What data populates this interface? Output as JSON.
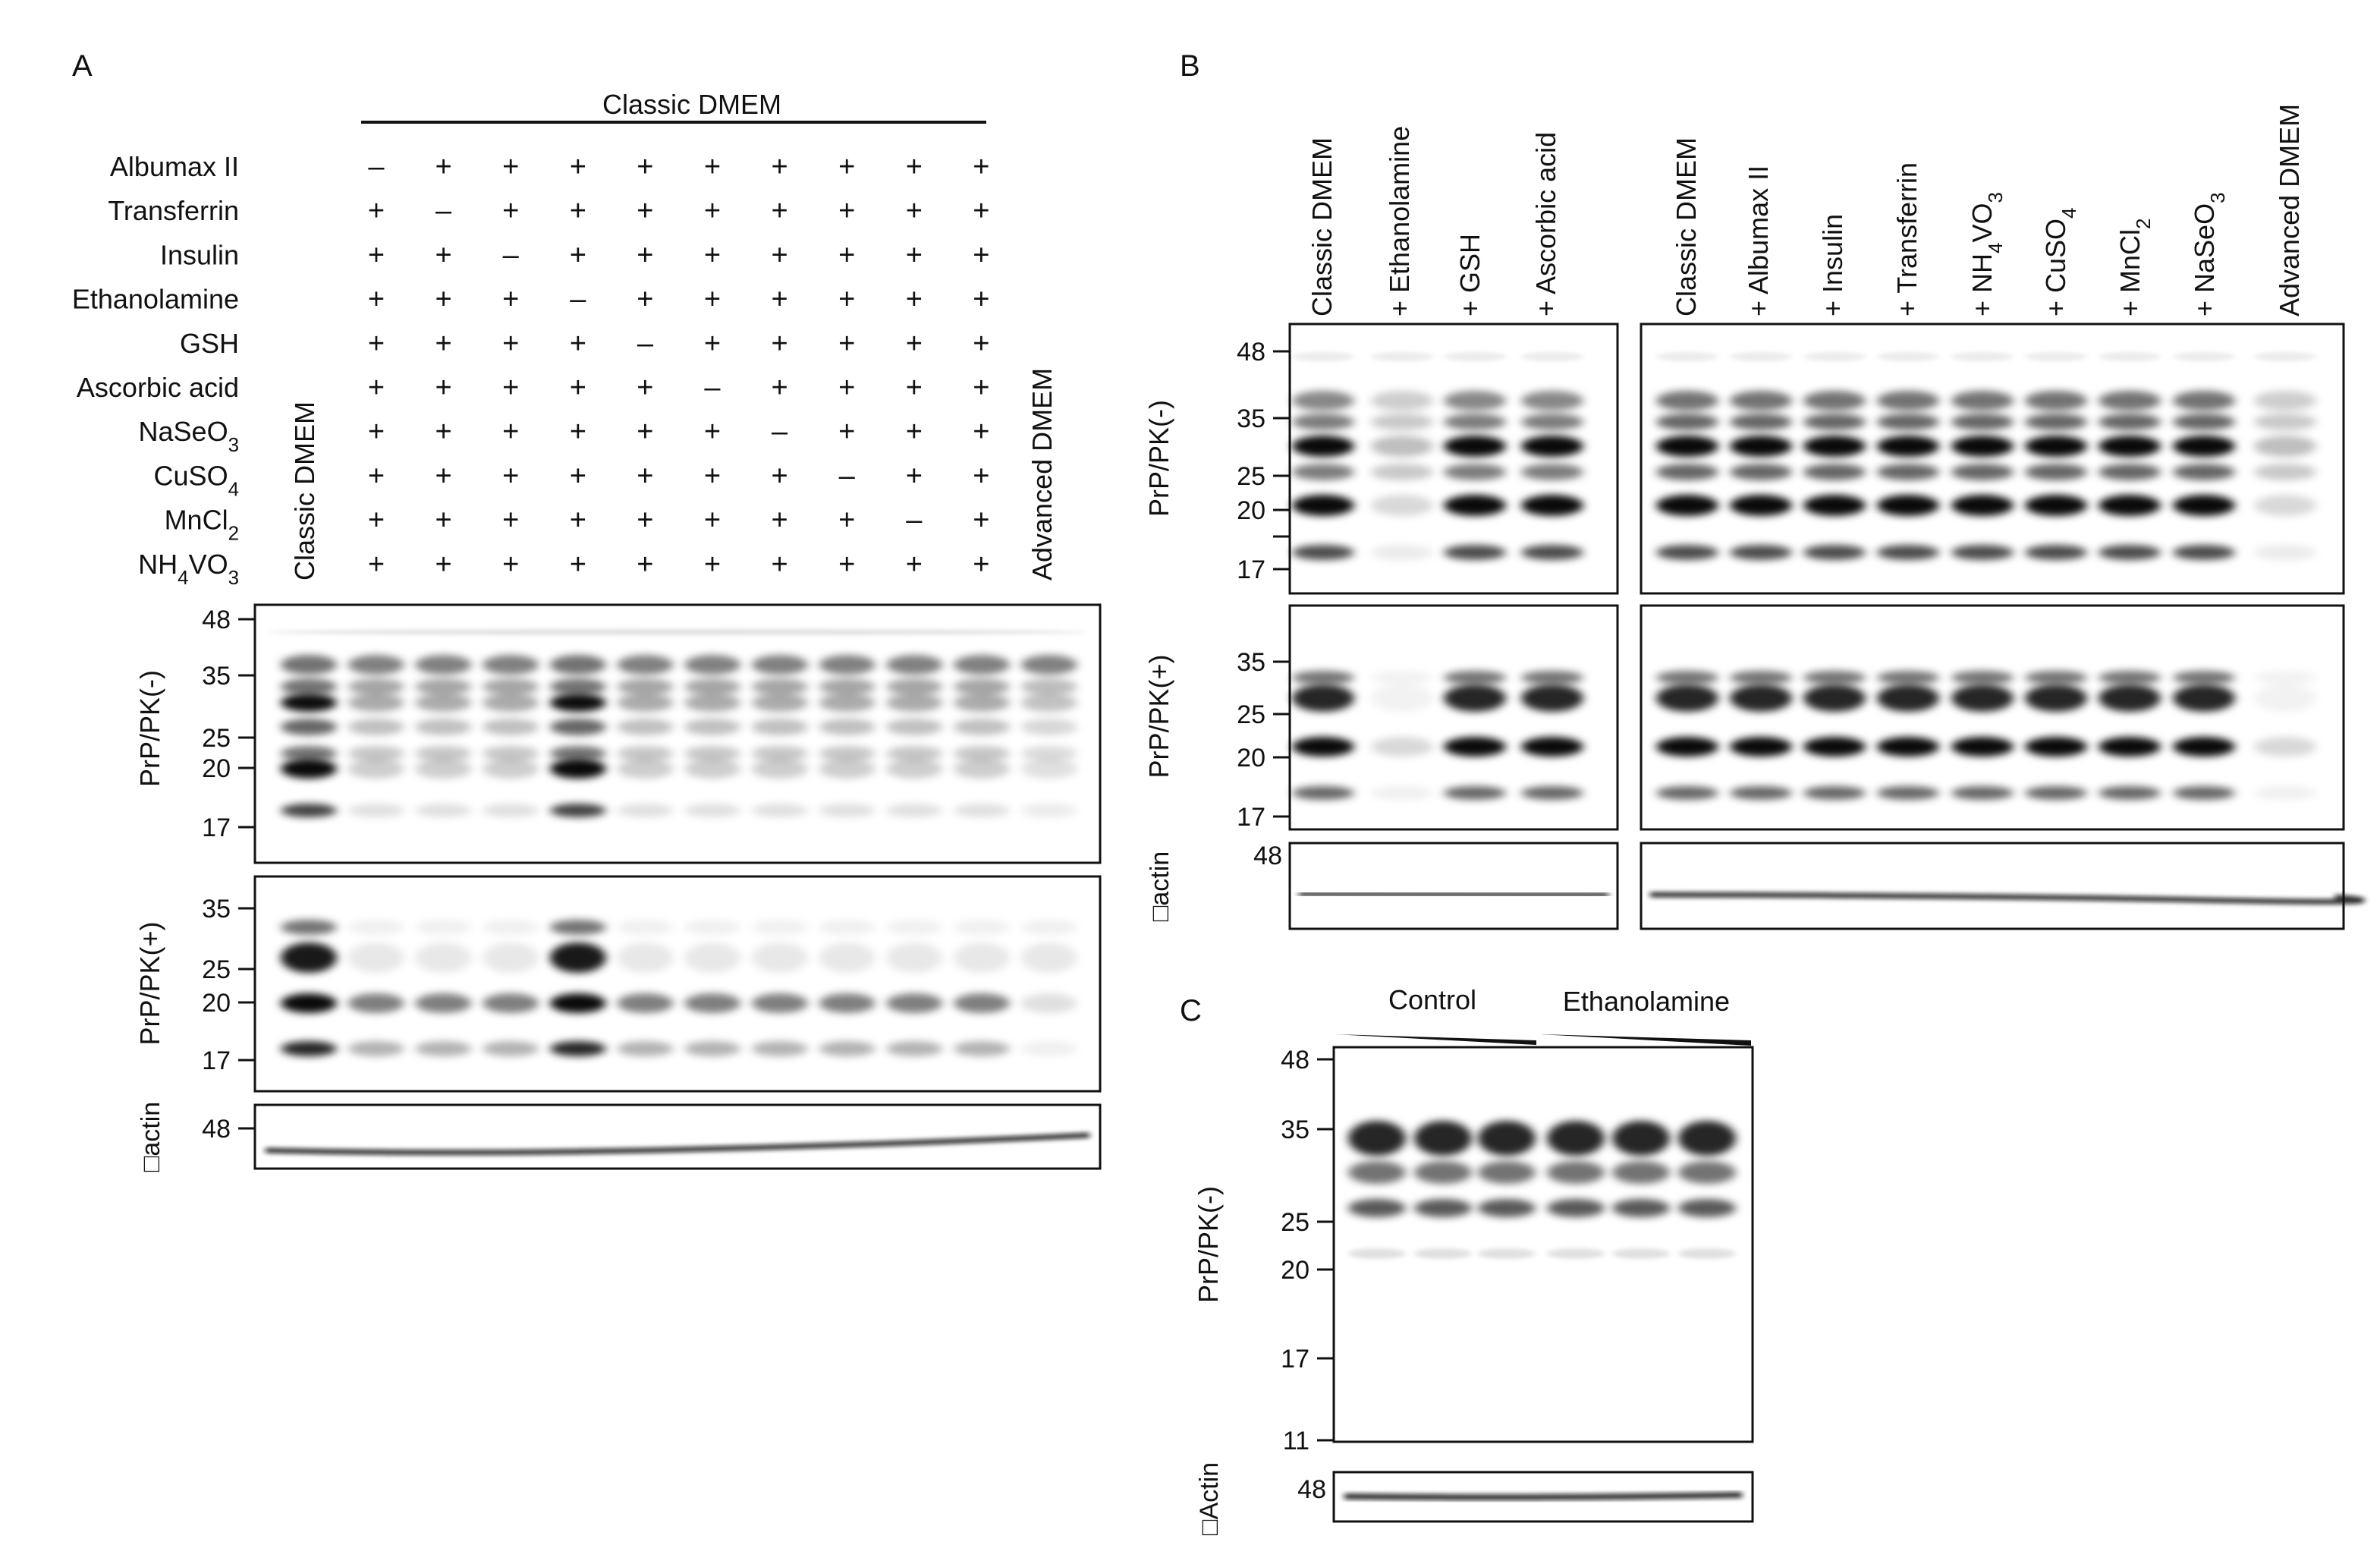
{
  "panel_a": {
    "letter": "A",
    "header": "Classic DMEM",
    "lane_labels": {
      "first": "Classic DMEM",
      "last": "Advanced DMEM"
    },
    "supplements": [
      {
        "name": "Albumax II",
        "sub": null,
        "suffix": null,
        "marks": [
          "–",
          "+",
          "+",
          "+",
          "+",
          "+",
          "+",
          "+",
          "+",
          "+"
        ]
      },
      {
        "name": "Transferrin",
        "sub": null,
        "suffix": null,
        "marks": [
          "+",
          "–",
          "+",
          "+",
          "+",
          "+",
          "+",
          "+",
          "+",
          "+"
        ]
      },
      {
        "name": "Insulin",
        "sub": null,
        "suffix": null,
        "marks": [
          "+",
          "+",
          "–",
          "+",
          "+",
          "+",
          "+",
          "+",
          "+",
          "+"
        ]
      },
      {
        "name": "Ethanolamine",
        "sub": null,
        "suffix": null,
        "marks": [
          "+",
          "+",
          "+",
          "–",
          "+",
          "+",
          "+",
          "+",
          "+",
          "+"
        ]
      },
      {
        "name": "GSH",
        "sub": null,
        "suffix": null,
        "marks": [
          "+",
          "+",
          "+",
          "+",
          "–",
          "+",
          "+",
          "+",
          "+",
          "+"
        ]
      },
      {
        "name": "Ascorbic acid",
        "sub": null,
        "suffix": null,
        "marks": [
          "+",
          "+",
          "+",
          "+",
          "+",
          "–",
          "+",
          "+",
          "+",
          "+"
        ]
      },
      {
        "name": "NaSeO",
        "sub": "3",
        "suffix": null,
        "marks": [
          "+",
          "+",
          "+",
          "+",
          "+",
          "+",
          "–",
          "+",
          "+",
          "+"
        ]
      },
      {
        "name": "CuSO",
        "sub": "4",
        "suffix": null,
        "marks": [
          "+",
          "+",
          "+",
          "+",
          "+",
          "+",
          "+",
          "–",
          "+",
          "+"
        ]
      },
      {
        "name": "MnCl",
        "sub": "2",
        "suffix": null,
        "marks": [
          "+",
          "+",
          "+",
          "+",
          "+",
          "+",
          "+",
          "+",
          "–",
          "+"
        ]
      },
      {
        "name": "NH",
        "sub": "4",
        "suffix": "VO3",
        "marks": [
          "+",
          "+",
          "+",
          "+",
          "+",
          "+",
          "+",
          "+",
          "+",
          "+"
        ]
      }
    ],
    "blots": {
      "pk_minus": {
        "label": "PrP/PK(-)",
        "markers": [
          "48",
          "35",
          "25",
          "20",
          "17"
        ]
      },
      "pk_plus": {
        "label": "PrP/PK(+)",
        "markers": [
          "35",
          "25",
          "20",
          "17"
        ]
      },
      "actin": {
        "label": "□actin",
        "markers": [
          "48"
        ]
      }
    }
  },
  "panel_b": {
    "letter": "B",
    "lane_labels_left": [
      "Classic DMEM",
      "+ Ethanolamine",
      "+ GSH",
      "+ Ascorbic acid"
    ],
    "lane_labels_right": [
      "Classic DMEM",
      "+ Albumax II",
      "+ Insulin",
      "+ Transferrin",
      "+ NH4VO3",
      "+ CuSO4",
      "+ MnCl2",
      "+ NaSeO3",
      "Advanced DMEM"
    ],
    "blots": {
      "pk_minus": {
        "label": "PrP/PK(-)",
        "markers": [
          "48",
          "35",
          "25",
          "20",
          "17"
        ]
      },
      "pk_plus": {
        "label": "PrP/PK(+)",
        "markers": [
          "35",
          "25",
          "20",
          "17"
        ]
      },
      "actin": {
        "label": "□actin",
        "markers": [
          "48"
        ]
      }
    }
  },
  "panel_c": {
    "letter": "C",
    "groups": [
      "Control",
      "Ethanolamine"
    ],
    "blots": {
      "pk_minus": {
        "label": "PrP/PK(-)",
        "markers": [
          "48",
          "35",
          "25",
          "20",
          "17",
          "11"
        ]
      },
      "actin": {
        "label": "□Actin",
        "markers": [
          "48"
        ]
      }
    }
  },
  "colors": {
    "band": "#000000",
    "background": "#ffffff",
    "text": "#111111"
  }
}
